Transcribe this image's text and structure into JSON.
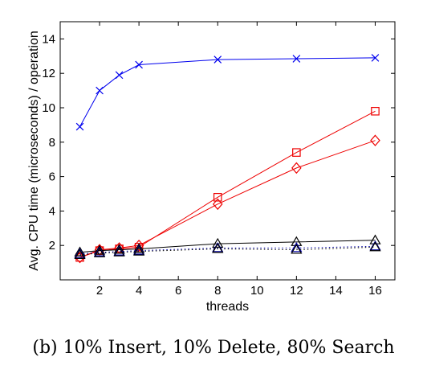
{
  "caption": "(b) 10% Insert, 10% Delete, 80% Search",
  "chart_data": {
    "type": "line",
    "xlabel": "threads",
    "ylabel": "Avg. CPU time (microseconds) / operation",
    "xlim": [
      0,
      17
    ],
    "ylim": [
      0,
      15
    ],
    "xticks": [
      2,
      4,
      6,
      8,
      10,
      12,
      14,
      16
    ],
    "yticks": [
      2,
      4,
      6,
      8,
      10,
      12,
      14
    ],
    "grid": false,
    "series": [
      {
        "color": "#0000ee",
        "marker": "x",
        "dash": "solid",
        "x": [
          1,
          2,
          3,
          4,
          8,
          12,
          16
        ],
        "y": [
          8.9,
          11.0,
          11.9,
          12.5,
          12.8,
          12.85,
          12.9
        ]
      },
      {
        "color": "#ee0000",
        "marker": "square",
        "dash": "solid",
        "x": [
          1,
          2,
          3,
          4,
          8,
          12,
          16
        ],
        "y": [
          1.3,
          1.7,
          1.8,
          1.9,
          4.8,
          7.4,
          9.8
        ]
      },
      {
        "color": "#ee0000",
        "marker": "diamond",
        "dash": "solid",
        "x": [
          1,
          2,
          3,
          4,
          8,
          12,
          16
        ],
        "y": [
          1.3,
          1.75,
          1.85,
          2.0,
          4.4,
          6.5,
          8.1
        ]
      },
      {
        "color": "#000000",
        "marker": "triangle",
        "dash": "solid",
        "x": [
          1,
          2,
          3,
          4,
          8,
          12,
          16
        ],
        "y": [
          1.6,
          1.7,
          1.75,
          1.8,
          2.1,
          2.2,
          2.3
        ]
      },
      {
        "color": "#0000aa",
        "marker": "triangle",
        "dash": "dotted",
        "x": [
          1,
          2,
          3,
          4,
          8,
          12,
          16
        ],
        "y": [
          1.5,
          1.6,
          1.65,
          1.7,
          1.85,
          1.85,
          1.95
        ]
      },
      {
        "color": "#000000",
        "marker": "triangle",
        "dash": "dotted",
        "x": [
          1,
          2,
          3,
          4,
          8,
          12,
          16
        ],
        "y": [
          1.45,
          1.55,
          1.6,
          1.65,
          1.8,
          1.75,
          1.9
        ]
      }
    ]
  }
}
